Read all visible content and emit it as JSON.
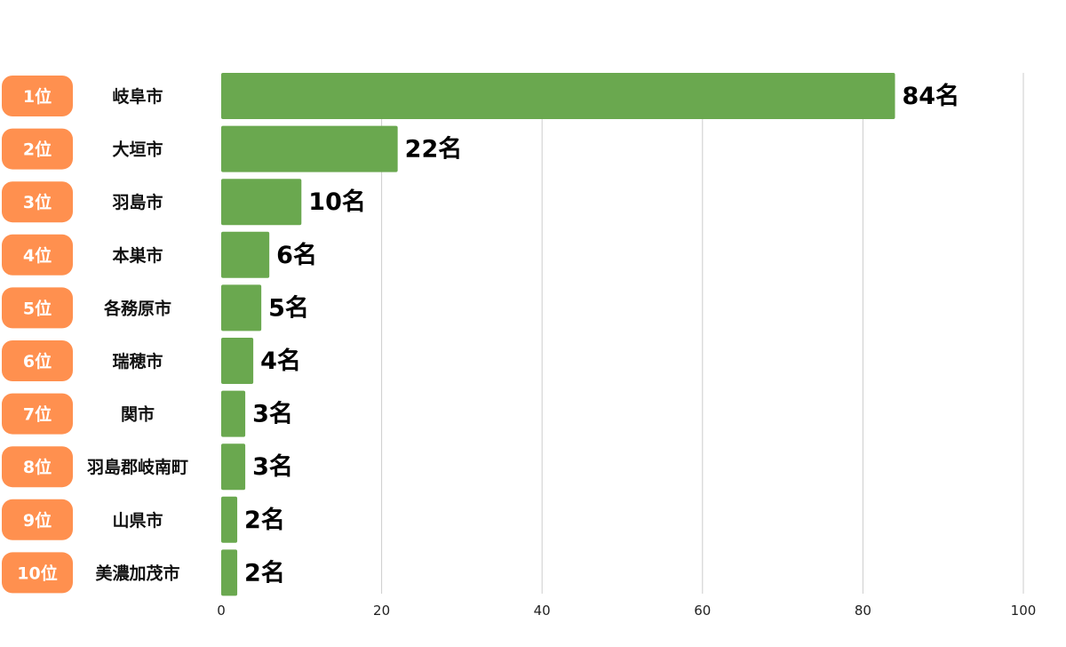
{
  "chart_data": {
    "type": "bar",
    "orientation": "horizontal",
    "ranks": [
      "1位",
      "2位",
      "3位",
      "4位",
      "5位",
      "6位",
      "7位",
      "8位",
      "9位",
      "10位"
    ],
    "categories": [
      "岐阜市",
      "大垣市",
      "羽島市",
      "本巣市",
      "各務原市",
      "瑞穂市",
      "関市",
      "羽島郡岐南町",
      "山県市",
      "美濃加茂市"
    ],
    "values": [
      84,
      22,
      10,
      6,
      5,
      4,
      3,
      3,
      2,
      2
    ],
    "value_labels": [
      "84名",
      "22名",
      "10名",
      "6名",
      "5名",
      "4名",
      "3名",
      "3名",
      "2名",
      "2名"
    ],
    "xlim": [
      0,
      100
    ],
    "x_ticks": [
      "0",
      "20",
      "40",
      "60",
      "80",
      "100"
    ],
    "grid": true,
    "title": "",
    "xlabel": "",
    "ylabel": ""
  },
  "colors": {
    "bar": "#6aa84f",
    "rank_badge": "#ff904f",
    "grid": "#cccccc"
  }
}
